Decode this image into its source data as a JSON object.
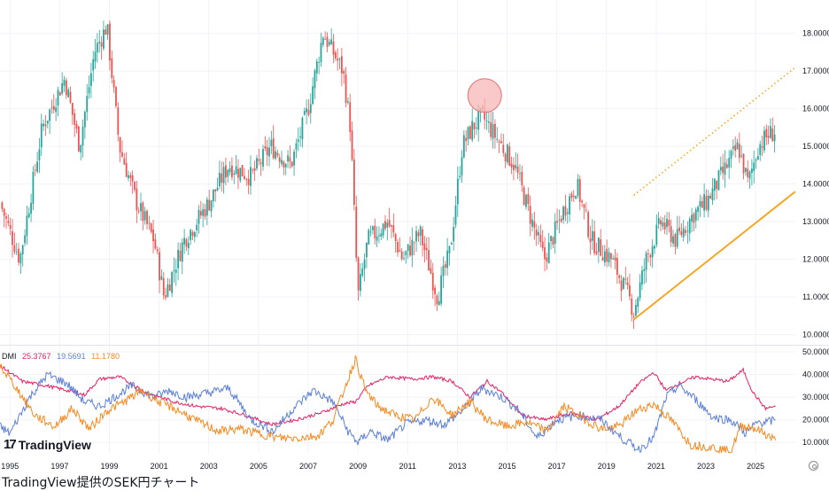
{
  "caption": "TradingView提供のSEK円チャート",
  "logo_text": "TradingView",
  "icons": {
    "logo": "tradingview-logo-icon",
    "settings": "settings-gear-icon"
  },
  "colors": {
    "up": "#26a69a",
    "down": "#ef5350",
    "plus_di": "#e91e63",
    "minus_di": "#5b7fd6",
    "adx": "#f6891f",
    "trendline": "#f5a623",
    "highlight_fill": "#f7b6b6",
    "highlight_stroke": "#e57373"
  },
  "chart_data": [
    {
      "type": "candlestick",
      "title": "",
      "xlabel": "",
      "ylabel": "",
      "x_ticks": [
        "1995",
        "1997",
        "1999",
        "2001",
        "2003",
        "2005",
        "2007",
        "2009",
        "2011",
        "2013",
        "2015",
        "2017",
        "2019",
        "2021",
        "2023",
        "2025"
      ],
      "xlim": [
        1994.6,
        2026.6
      ],
      "y_ticks": [
        "10.0000",
        "11.0000",
        "12.0000",
        "13.0000",
        "14.0000",
        "15.0000",
        "16.0000",
        "17.0000",
        "18.0000"
      ],
      "ylim": [
        9.8,
        18.7
      ],
      "grid": true,
      "anchors": {
        "x": [
          1994.6,
          1995.4,
          1996.3,
          1997.2,
          1997.8,
          1998.4,
          1998.9,
          1999.4,
          2000.1,
          2000.8,
          2001.2,
          2002.0,
          2003.0,
          2003.8,
          2004.7,
          2005.5,
          2006.3,
          2007.0,
          2007.6,
          2008.4,
          2008.7,
          2009.0,
          2009.4,
          2010.2,
          2010.8,
          2011.5,
          2012.2,
          2012.7,
          2013.2,
          2013.6,
          2014.0,
          2014.8,
          2015.3,
          2016.0,
          2016.5,
          2017.2,
          2017.8,
          2018.4,
          2019.2,
          2019.9,
          2020.1,
          2020.6,
          2021.2,
          2021.8,
          2022.5,
          2023.0,
          2023.6,
          2024.3,
          2024.7,
          2025.1,
          2025.5,
          2025.8
        ],
        "close": [
          13.5,
          12.0,
          15.5,
          16.8,
          15.0,
          17.5,
          18.2,
          15.0,
          13.5,
          12.5,
          11.0,
          12.5,
          13.5,
          14.5,
          14.2,
          15.0,
          14.5,
          16.0,
          18.0,
          17.0,
          15.5,
          11.0,
          12.5,
          13.0,
          12.0,
          12.7,
          11.0,
          12.2,
          15.0,
          15.5,
          15.8,
          15.0,
          14.5,
          13.0,
          12.0,
          13.2,
          14.0,
          12.5,
          12.0,
          11.0,
          10.6,
          12.0,
          13.0,
          12.5,
          13.2,
          13.5,
          14.2,
          15.0,
          14.0,
          15.0,
          15.3,
          15.4
        ]
      },
      "annotations": [
        {
          "type": "circle",
          "center": [
            2014.1,
            16.35
          ]
        },
        {
          "type": "line",
          "style": "solid",
          "from": [
            2020.1,
            10.4
          ],
          "to": [
            2026.6,
            13.8
          ]
        },
        {
          "type": "line",
          "style": "dotted",
          "from": [
            2020.1,
            13.7
          ],
          "to": [
            2026.6,
            17.1
          ]
        }
      ]
    },
    {
      "type": "line",
      "indicator": "DMI",
      "legend": {
        "name": "DMI",
        "values": [
          "25.3767",
          "19.5691",
          "11.1780"
        ]
      },
      "y_ticks": [
        "10.0000",
        "20.0000",
        "30.0000",
        "40.0000",
        "50.0000"
      ],
      "ylim": [
        5,
        52
      ],
      "series": [
        {
          "x": [
            1994.6,
            1995.5,
            1996.5,
            1997.3,
            1998.0,
            1998.6,
            1999.4,
            2000.5,
            2001.6,
            2002.5,
            2003.5,
            2004.5,
            2005.5,
            2006.5,
            2007.5,
            2008.4,
            2008.9,
            2009.4,
            2010.2,
            2011.2,
            2012.0,
            2012.8,
            2013.5,
            2014.2,
            2014.8,
            2015.6,
            2016.5,
            2017.6,
            2018.6,
            2019.5,
            2020.3,
            2020.9,
            2021.4,
            2021.9,
            2022.6,
            2023.2,
            2023.9,
            2024.5,
            2024.9,
            2025.4,
            2025.8
          ],
          "y": [
            44,
            37,
            35,
            33,
            31,
            38,
            39,
            32,
            28,
            26,
            25,
            22,
            18,
            20,
            23,
            27,
            28,
            35,
            39,
            38,
            39,
            37,
            30,
            37,
            32,
            22,
            20,
            23,
            20,
            26,
            36,
            41,
            33,
            36,
            39,
            38,
            37,
            42,
            32,
            25,
            26
          ]
        },
        {
          "x": [
            1994.6,
            1995.0,
            1995.8,
            1996.5,
            1997.3,
            1998.0,
            1998.6,
            1999.2,
            1999.9,
            2000.8,
            2001.4,
            2002.1,
            2003.0,
            2003.8,
            2004.7,
            2005.6,
            2006.4,
            2007.2,
            2008.0,
            2008.6,
            2009.0,
            2009.5,
            2010.2,
            2010.9,
            2011.7,
            2012.5,
            2013.3,
            2014.0,
            2014.8,
            2015.5,
            2016.2,
            2017.0,
            2017.9,
            2018.8,
            2019.6,
            2020.3,
            2020.9,
            2021.4,
            2021.9,
            2022.5,
            2023.3,
            2024.0,
            2024.6,
            2025.1,
            2025.5,
            2025.8
          ],
          "y": [
            17,
            14,
            30,
            40,
            36,
            28,
            26,
            30,
            35,
            30,
            33,
            30,
            32,
            34,
            20,
            15,
            25,
            33,
            28,
            15,
            10,
            15,
            11,
            18,
            20,
            18,
            25,
            34,
            30,
            24,
            12,
            20,
            22,
            20,
            12,
            7,
            12,
            30,
            35,
            30,
            21,
            20,
            14,
            19,
            19,
            20
          ]
        },
        {
          "x": [
            1994.6,
            1995.2,
            1996.0,
            1996.8,
            1997.5,
            1998.2,
            1998.9,
            1999.6,
            2000.3,
            2001.0,
            2001.8,
            2002.6,
            2003.4,
            2004.2,
            2005.0,
            2005.8,
            2006.6,
            2007.4,
            2008.0,
            2008.6,
            2008.9,
            2009.3,
            2009.8,
            2010.5,
            2011.3,
            2012.0,
            2012.8,
            2013.5,
            2014.2,
            2015.0,
            2015.8,
            2016.6,
            2017.3,
            2018.0,
            2018.8,
            2019.5,
            2020.2,
            2020.9,
            2021.6,
            2022.4,
            2023.2,
            2024.0,
            2024.4,
            2024.8,
            2025.2,
            2025.8
          ],
          "y": [
            44,
            35,
            22,
            17,
            25,
            16,
            24,
            28,
            33,
            28,
            24,
            19,
            15,
            16,
            14,
            12,
            12,
            13,
            20,
            38,
            47,
            33,
            26,
            22,
            20,
            30,
            22,
            28,
            20,
            17,
            19,
            15,
            26,
            21,
            16,
            17,
            24,
            27,
            20,
            9,
            8,
            6,
            17,
            17,
            15,
            11
          ]
        }
      ],
      "x_ticks": [
        "1995",
        "1997",
        "1999",
        "2001",
        "2003",
        "2005",
        "2007",
        "2009",
        "2011",
        "2013",
        "2015",
        "2017",
        "2019",
        "2021",
        "2023",
        "2025"
      ]
    }
  ]
}
